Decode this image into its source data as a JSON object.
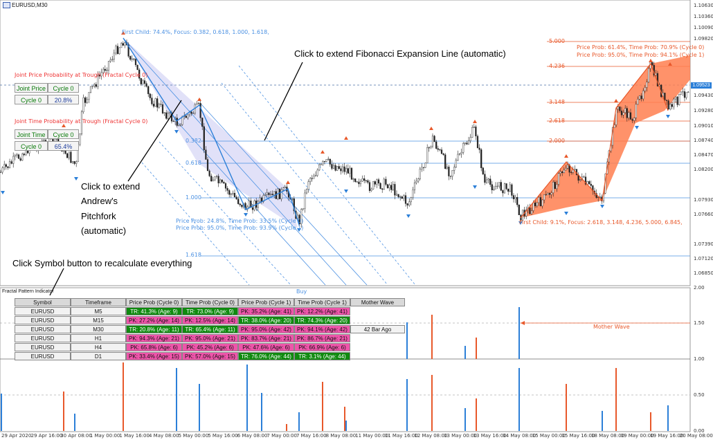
{
  "window": {
    "title": "EURUSD,M30"
  },
  "price_axis": {
    "labels": [
      "1.10630",
      "1.10360",
      "1.10090",
      "1.09820",
      "1.09523",
      "1.09430",
      "1.09280",
      "1.09010",
      "1.08740",
      "1.08470",
      "1.08200",
      "1.07930",
      "1.07660",
      "1.07390",
      "1.07120",
      "1.06850"
    ],
    "current": "1.09523"
  },
  "time_axis": {
    "labels": [
      "29 Apr 2020",
      "29 Apr 16:00",
      "30 Apr 08:00",
      "1 May 00:00",
      "1 May 16:00",
      "4 May 08:00",
      "5 May 00:00",
      "5 May 16:00",
      "6 May 08:00",
      "7 May 00:00",
      "7 May 16:00",
      "8 May 08:00",
      "11 May 00:00",
      "11 May 16:00",
      "12 May 08:00",
      "13 May 00:00",
      "13 May 16:00",
      "14 May 08:00",
      "15 May 00:00",
      "15 May 16:00",
      "18 May 08:00",
      "19 May 00:00",
      "19 May 16:00",
      "20 May 08:00"
    ]
  },
  "annotations": {
    "first_child_top": "First Child: 74.4%, Focus: 0.382, 0.618, 1.000, 1.618,",
    "first_child_bottom": "First Child: 9.1%, Focus: 2.618, 3.148, 4.236, 5.000, 6.845,",
    "price_prob_mid_1": "Price Prob: 24.8%, Time Prob: 33.5% (Cycle 0)",
    "price_prob_mid_2": "Price Prob: 95.0%, Time Prob: 93.9% (Cycle 1)",
    "price_prob_right_1": "Price Prob: 61.4%, Time Prob: 70.9% (Cycle 0)",
    "price_prob_right_2": "Price Prob: 95.0%, Time Prob: 94.1% (Cycle 1)",
    "joint_price_title": "Joint Price Probability at Trough (Fractal Cycle 0)",
    "joint_time_title": "Joint Time Probability at Trough (Fractal Cycle 0)",
    "buy": "Buy",
    "mother_wave": "Mother Wave"
  },
  "fib_left": [
    "0.382",
    "0.618",
    "1.000",
    "1.618"
  ],
  "fib_right": [
    "5.000",
    "4.236",
    "3.148",
    "2.618",
    "2.000"
  ],
  "joint_price": {
    "label": "Joint Price",
    "cycle0": "Cycle 0",
    "cycle_b": "Cycle 0",
    "value": "20.8%"
  },
  "joint_time": {
    "label": "Joint Time",
    "cycle0": "Cycle 0",
    "cycle_b": "Cycle 0",
    "value": "65.4%"
  },
  "callouts": {
    "fib_expansion": "Click to extend Fibonacci Expansion Line (automatic)",
    "pitchfork_1": "Click to extend",
    "pitchfork_2": "Andrew's",
    "pitchfork_3": "Pitchfork",
    "pitchfork_4": "(automatic)",
    "symbol_button": "Click Symbol button to recalculate everything"
  },
  "indicator": {
    "title": "Fractal Pattern Indicator",
    "headers": [
      "Symbol",
      "Timeframe",
      "Price Prob (Cycle 0)",
      "Time Prob (Cycle 0)",
      "Price Prob (Cycle 1)",
      "Time Prob (Cycle 1)",
      "Mother Wave"
    ],
    "rows": [
      {
        "symbol": "EURUSD",
        "tf": "M5",
        "c": [
          [
            "tr",
            "TR: 41.3%  (Age: 9)"
          ],
          [
            "tr",
            "TR: 73.0%  (Age: 9)"
          ],
          [
            "pk",
            "PK: 35.2%  (Age: 41)"
          ],
          [
            "pk",
            "PK: 12.2%  (Age: 41)"
          ]
        ],
        "mw": ""
      },
      {
        "symbol": "EURUSD",
        "tf": "M15",
        "c": [
          [
            "pk",
            "PK: 27.2%  (Age: 14)"
          ],
          [
            "pk",
            "PK: 12.5%  (Age: 14)"
          ],
          [
            "tr",
            "TR: 38.0%  (Age: 20)"
          ],
          [
            "tr",
            "TR: 74.3%  (Age: 20)"
          ]
        ],
        "mw": ""
      },
      {
        "symbol": "EURUSD",
        "tf": "M30",
        "c": [
          [
            "tr",
            "TR: 20.8%  (Age: 11)"
          ],
          [
            "tr",
            "TR: 65.4%  (Age: 11)"
          ],
          [
            "pk",
            "PK: 95.0%  (Age: 42)"
          ],
          [
            "pk",
            "PK: 94.1%  (Age: 42)"
          ]
        ],
        "mw": "42 Bar Ago"
      },
      {
        "symbol": "EURUSD",
        "tf": "H1",
        "c": [
          [
            "pk",
            "PK: 94.3%  (Age: 21)"
          ],
          [
            "pk",
            "PK: 95.0%  (Age: 21)"
          ],
          [
            "pk",
            "PK: 83.7%  (Age: 21)"
          ],
          [
            "pk",
            "PK: 86.7%  (Age: 21)"
          ]
        ],
        "mw": ""
      },
      {
        "symbol": "EURUSD",
        "tf": "H4",
        "c": [
          [
            "pk",
            "PK: 65.8%  (Age: 6)"
          ],
          [
            "pk",
            "PK: 45.2%  (Age: 6)"
          ],
          [
            "pk",
            "PK: 47.6%  (Age: 6)"
          ],
          [
            "pk",
            "PK: 66.9%  (Age: 6)"
          ]
        ],
        "mw": ""
      },
      {
        "symbol": "EURUSD",
        "tf": "D1",
        "c": [
          [
            "pk",
            "PK: 33.4%  (Age: 15)"
          ],
          [
            "pk",
            "PK: 57.0%  (Age: 15)"
          ],
          [
            "tr",
            "TR: 76.0%  (Age: 44)"
          ],
          [
            "tr",
            "TR: 3.1%  (Age: 44)"
          ]
        ],
        "mw": ""
      }
    ]
  },
  "sub_axis": {
    "labels": [
      "2.00",
      "1.50",
      "1.00",
      "0.50",
      "0.00"
    ]
  },
  "colors": {
    "bull": "#2b7fd8",
    "bear": "#e8582a",
    "tr": "#0f8a0f",
    "pk": "#ee55aa",
    "fan": "#c9c9f2",
    "orange_fill": "#ff7f50"
  }
}
